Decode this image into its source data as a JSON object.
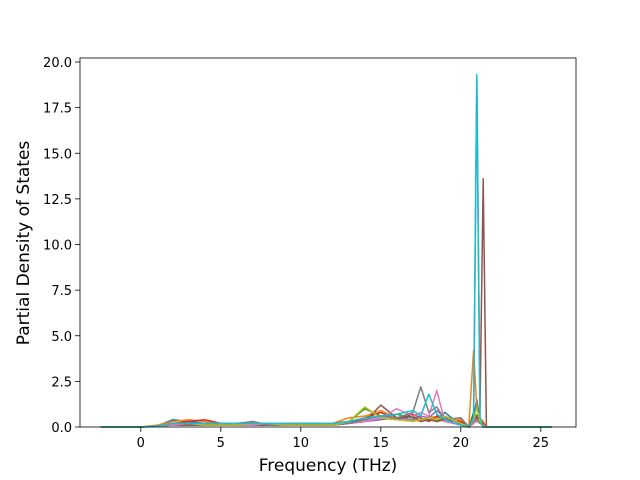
{
  "chart_data": {
    "type": "line",
    "xlabel": "Frequency (THz)",
    "ylabel": "Partial Density of States",
    "x": [
      -2.5,
      0,
      1,
      2,
      3,
      4,
      5,
      6,
      7,
      8,
      9,
      10,
      11,
      12,
      13,
      14,
      15,
      16,
      17,
      17.5,
      18,
      18.5,
      19,
      20,
      20.5,
      20.8,
      21.0,
      21.2,
      21.4,
      21.6,
      22,
      25.7
    ],
    "series": [
      {
        "color": "#1f77b4",
        "values": [
          0,
          0,
          0.05,
          0.4,
          0.3,
          0.2,
          0.2,
          0.1,
          0.2,
          0.15,
          0.1,
          0.2,
          0.2,
          0.1,
          0.2,
          0.3,
          0.5,
          0.4,
          0.6,
          0.3,
          0.5,
          0.4,
          0.8,
          0.1,
          0,
          0.5,
          1.5,
          0.3,
          0,
          0,
          0,
          0
        ]
      },
      {
        "color": "#ff7f0e",
        "values": [
          0,
          0,
          0.1,
          0.3,
          0.4,
          0.3,
          0.2,
          0.2,
          0.1,
          0.2,
          0.1,
          0.1,
          0.2,
          0.2,
          0.5,
          0.6,
          0.9,
          0.5,
          0.4,
          0.3,
          0.6,
          0.5,
          0.3,
          0.4,
          0,
          4.2,
          1.0,
          0.5,
          0.3,
          0,
          0,
          0
        ]
      },
      {
        "color": "#2ca02c",
        "values": [
          0,
          0,
          0.05,
          0.2,
          0.2,
          0.15,
          0.1,
          0.2,
          0.1,
          0.1,
          0.2,
          0.1,
          0.1,
          0.2,
          0.3,
          1.0,
          0.6,
          0.7,
          0.5,
          0.4,
          0.5,
          0.3,
          0.6,
          0.2,
          0,
          0.8,
          0.6,
          0.3,
          0.1,
          0,
          0,
          0
        ]
      },
      {
        "color": "#d62728",
        "values": [
          0,
          0,
          0.05,
          0.2,
          0.3,
          0.4,
          0.2,
          0.1,
          0.3,
          0.1,
          0.2,
          0.2,
          0.1,
          0.1,
          0.2,
          0.5,
          0.8,
          0.4,
          0.7,
          0.5,
          0.3,
          0.6,
          0.4,
          0.3,
          0,
          0.6,
          0.5,
          0.4,
          0.2,
          0,
          0,
          0
        ]
      },
      {
        "color": "#9467bd",
        "values": [
          0,
          0,
          0.05,
          0.1,
          0.1,
          0.1,
          0.1,
          0.1,
          0.1,
          0.1,
          0.1,
          0.2,
          0.1,
          0.1,
          0.2,
          0.3,
          0.4,
          0.5,
          0.4,
          0.6,
          0.5,
          0.9,
          0.5,
          0.2,
          0,
          0.2,
          19.0,
          0.4,
          0,
          0,
          0,
          0
        ]
      },
      {
        "color": "#8c564b",
        "values": [
          0,
          0,
          0.05,
          0.1,
          0.1,
          0.1,
          0.1,
          0.1,
          0.1,
          0.1,
          0.1,
          0.1,
          0.1,
          0.1,
          0.2,
          0.3,
          1.2,
          0.5,
          0.6,
          0.3,
          0.4,
          0.3,
          0.4,
          0.5,
          0,
          0.3,
          0.5,
          1.0,
          13.6,
          0,
          0,
          0
        ]
      },
      {
        "color": "#e377c2",
        "values": [
          0,
          0,
          0.05,
          0.1,
          0.2,
          0.2,
          0.1,
          0.1,
          0.1,
          0.2,
          0.1,
          0.1,
          0.2,
          0.1,
          0.2,
          0.3,
          0.5,
          1.0,
          0.6,
          0.8,
          0.6,
          2.0,
          0.3,
          0.1,
          0,
          0.2,
          0.3,
          0.2,
          0.1,
          0,
          0,
          0
        ]
      },
      {
        "color": "#7f7f7f",
        "values": [
          0,
          0,
          0.05,
          0.2,
          0.2,
          0.1,
          0.2,
          0.2,
          0.3,
          0.1,
          0.1,
          0.1,
          0.2,
          0.1,
          0.2,
          0.4,
          0.6,
          0.5,
          0.8,
          2.2,
          0.8,
          1.1,
          0.4,
          0.5,
          0,
          0.3,
          0.4,
          0.2,
          0.1,
          0,
          0,
          0
        ]
      },
      {
        "color": "#bcbd22",
        "values": [
          0,
          0,
          0.05,
          0.2,
          0.2,
          0.1,
          0.1,
          0.1,
          0.2,
          0.2,
          0.1,
          0.1,
          0.1,
          0.1,
          0.3,
          1.1,
          0.5,
          0.4,
          0.3,
          0.4,
          0.5,
          0.4,
          0.6,
          0.2,
          0,
          0.4,
          1.1,
          0.3,
          0.1,
          0,
          0,
          0
        ]
      },
      {
        "color": "#17becf",
        "values": [
          0,
          0,
          0.05,
          0.2,
          0.2,
          0.2,
          0.2,
          0.2,
          0.2,
          0.2,
          0.2,
          0.2,
          0.2,
          0.2,
          0.3,
          0.5,
          0.6,
          0.7,
          0.9,
          0.6,
          1.8,
          0.7,
          0.4,
          0.1,
          0,
          0.5,
          19.3,
          0.5,
          0,
          0,
          0,
          0
        ]
      }
    ],
    "xlim": [
      -3.8,
      27.2
    ],
    "ylim": [
      0,
      20.22
    ],
    "xticks": [
      0,
      5,
      10,
      15,
      20,
      25
    ],
    "yticks": [
      {
        "value": 0,
        "label": "0.0"
      },
      {
        "value": 2.5,
        "label": "2.5"
      },
      {
        "value": 5,
        "label": "5.0"
      },
      {
        "value": 7.5,
        "label": "7.5"
      },
      {
        "value": 10,
        "label": "10.0"
      },
      {
        "value": 12.5,
        "label": "12.5"
      },
      {
        "value": 15,
        "label": "15.0"
      },
      {
        "value": 17.5,
        "label": "17.5"
      },
      {
        "value": 20,
        "label": "20.0"
      }
    ]
  }
}
